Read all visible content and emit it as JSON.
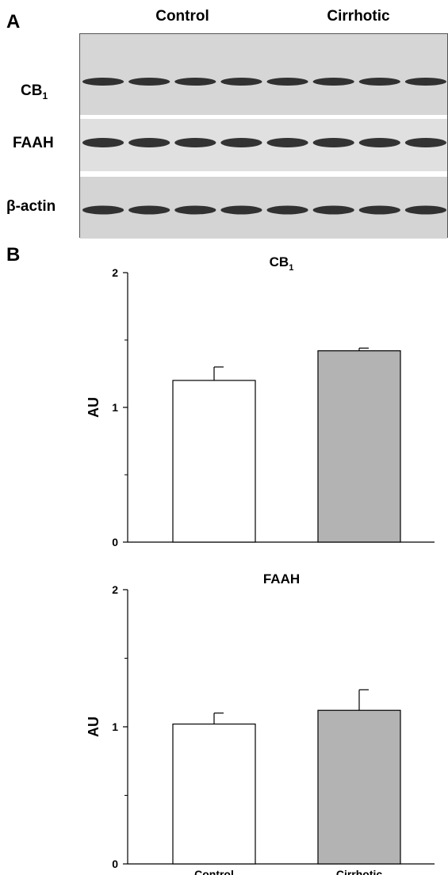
{
  "panel_a": {
    "letter": "A",
    "groups": [
      "Control",
      "Cirrhotic"
    ],
    "rows": [
      {
        "name": "CB",
        "sub": "1"
      },
      {
        "name": "FAAH",
        "sub": ""
      },
      {
        "name": "β-actin",
        "sub": ""
      }
    ],
    "lanes_per_group": 4
  },
  "panel_b": {
    "letter": "B"
  },
  "chart_data": [
    {
      "type": "bar",
      "title": "CB",
      "title_sub": "1",
      "categories": [
        "Control",
        "Cirrhotic"
      ],
      "values": [
        1.2,
        1.42
      ],
      "errors": [
        0.1,
        0.02
      ],
      "ylabel": "AU",
      "ylim": [
        0,
        2
      ],
      "yticks": [
        0,
        1,
        2
      ],
      "bar_colors": [
        "#ffffff",
        "#b3b3b3"
      ],
      "show_category_labels": false
    },
    {
      "type": "bar",
      "title": "FAAH",
      "title_sub": "",
      "categories": [
        "Control",
        "Cirrhotic"
      ],
      "values": [
        1.02,
        1.12
      ],
      "errors": [
        0.08,
        0.15
      ],
      "ylabel": "AU",
      "ylim": [
        0,
        2
      ],
      "yticks": [
        0,
        1,
        2
      ],
      "bar_colors": [
        "#ffffff",
        "#b3b3b3"
      ],
      "show_category_labels": true
    }
  ]
}
